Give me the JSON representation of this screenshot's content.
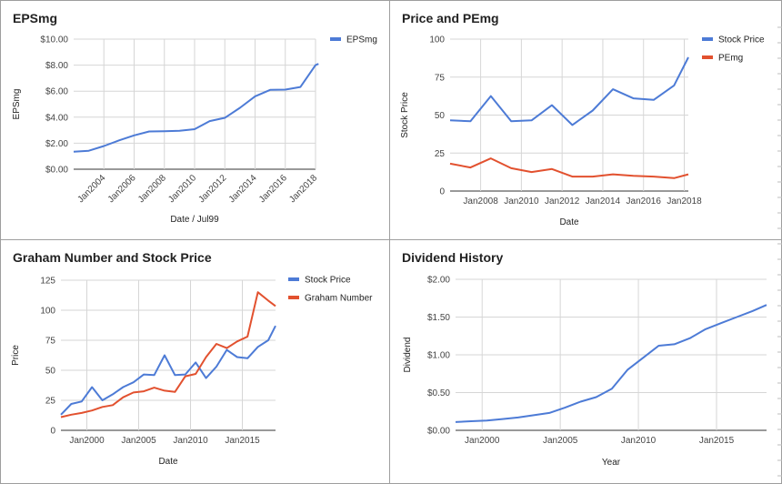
{
  "colors": {
    "blue": "#4d7bd6",
    "red": "#e2512f",
    "grid": "#d6d6d6"
  },
  "chart_data": [
    {
      "id": "eps",
      "type": "line",
      "title": "EPSmg",
      "xlabel": "Date / Jul99",
      "ylabel": "EPSmg",
      "x_ticks": [
        "Jan2004",
        "Jan2006",
        "Jan2008",
        "Jan2010",
        "Jan2012",
        "Jan2014",
        "Jan2016",
        "Jan2018"
      ],
      "x_tick_values": [
        2004,
        2006,
        2008,
        2010,
        2012,
        2014,
        2016,
        2018
      ],
      "xlim": [
        2002,
        2018
      ],
      "y_ticks": [
        "$0.00",
        "$2.00",
        "$4.00",
        "$6.00",
        "$8.00",
        "$10.00"
      ],
      "y_tick_values": [
        0,
        2,
        4,
        6,
        8,
        10
      ],
      "ylim": [
        0,
        10
      ],
      "grid": true,
      "legend": "right",
      "series": [
        {
          "name": "EPSmg",
          "color": "#4d7bd6",
          "x": [
            2002,
            2003,
            2004,
            2005,
            2006,
            2007,
            2008,
            2009,
            2010,
            2011,
            2012,
            2013,
            2014,
            2015,
            2016,
            2017,
            2018,
            2018.2
          ],
          "y": [
            1.35,
            1.42,
            1.78,
            2.22,
            2.6,
            2.9,
            2.92,
            2.95,
            3.08,
            3.7,
            3.95,
            4.72,
            5.6,
            6.1,
            6.12,
            6.32,
            8.0,
            8.1
          ]
        }
      ]
    },
    {
      "id": "pe",
      "type": "line",
      "title": "Price and PEmg",
      "xlabel": "Date",
      "ylabel": "Stock Price",
      "x_ticks": [
        "Jan2008",
        "Jan2010",
        "Jan2012",
        "Jan2014",
        "Jan2016",
        "Jan2018"
      ],
      "x_tick_values": [
        2008,
        2010,
        2012,
        2014,
        2016,
        2018
      ],
      "xlim": [
        2006.5,
        2018.2
      ],
      "y_ticks": [
        "0",
        "25",
        "50",
        "75",
        "100"
      ],
      "y_tick_values": [
        0,
        25,
        50,
        75,
        100
      ],
      "ylim": [
        0,
        100
      ],
      "grid": true,
      "legend": "right",
      "series": [
        {
          "name": "Stock Price",
          "color": "#4d7bd6",
          "x": [
            2006.5,
            2007.5,
            2008.5,
            2009.5,
            2010.5,
            2011.5,
            2012.5,
            2013.5,
            2014.5,
            2015.5,
            2016.5,
            2017.5,
            2018.2
          ],
          "y": [
            46.5,
            46,
            62.5,
            46,
            46.5,
            56.5,
            43.5,
            53,
            67,
            61,
            60,
            69.5,
            88
          ]
        },
        {
          "name": "PEmg",
          "color": "#e2512f",
          "x": [
            2006.5,
            2007.5,
            2008.5,
            2009.5,
            2010.5,
            2011.5,
            2012.5,
            2013.5,
            2014.5,
            2015.5,
            2016.5,
            2017.5,
            2018.2
          ],
          "y": [
            18,
            15.5,
            21.5,
            15,
            12.5,
            14.5,
            9.5,
            9.5,
            11,
            10,
            9.5,
            8.5,
            11
          ]
        }
      ]
    },
    {
      "id": "graham",
      "type": "line",
      "title": "Graham Number and Stock Price",
      "xlabel": "Date",
      "ylabel": "Price",
      "x_ticks": [
        "Jan2000",
        "Jan2005",
        "Jan2010",
        "Jan2015"
      ],
      "x_tick_values": [
        2000,
        2005,
        2010,
        2015
      ],
      "xlim": [
        1997.5,
        2018.2
      ],
      "y_ticks": [
        "0",
        "25",
        "50",
        "75",
        "100",
        "125"
      ],
      "y_tick_values": [
        0,
        25,
        50,
        75,
        100,
        125
      ],
      "ylim": [
        0,
        125
      ],
      "grid": true,
      "legend": "right",
      "series": [
        {
          "name": "Stock Price",
          "color": "#4d7bd6",
          "x": [
            1997.5,
            1998.5,
            1999.5,
            2000.5,
            2001.5,
            2002.5,
            2003.5,
            2004.5,
            2005.5,
            2006.5,
            2007.5,
            2008.5,
            2009.5,
            2010.5,
            2011.5,
            2012.5,
            2013.5,
            2014.5,
            2015.5,
            2016.5,
            2017.5,
            2018.2
          ],
          "y": [
            13,
            22,
            24,
            36,
            25,
            30,
            36,
            40,
            46.5,
            46,
            62.5,
            46,
            46.5,
            56.5,
            43.5,
            53,
            67,
            61,
            60,
            69.5,
            75,
            87
          ]
        },
        {
          "name": "Graham Number",
          "color": "#e2512f",
          "x": [
            1997.5,
            1998.5,
            1999.5,
            2000.5,
            2001.5,
            2002.5,
            2003.5,
            2004.5,
            2005.5,
            2006.5,
            2007.5,
            2008.5,
            2009.5,
            2010.5,
            2011.5,
            2012.5,
            2013.5,
            2014.5,
            2015.5,
            2016.5,
            2017.5,
            2018.2
          ],
          "y": [
            11,
            13,
            14.5,
            16.5,
            19.5,
            21,
            27.5,
            31.5,
            32.5,
            35.5,
            33,
            32,
            45,
            47,
            61,
            72,
            68.5,
            74,
            78,
            115,
            108,
            103.5
          ]
        }
      ]
    },
    {
      "id": "dividend",
      "type": "line",
      "title": "Dividend History",
      "xlabel": "Year",
      "ylabel": "Dividend",
      "x_ticks": [
        "Jan2000",
        "Jan2005",
        "Jan2010",
        "Jan2015"
      ],
      "x_tick_values": [
        2000,
        2005,
        2010,
        2015
      ],
      "xlim": [
        1998.3,
        2018.2
      ],
      "y_ticks": [
        "$0.00",
        "$0.50",
        "$1.00",
        "$1.50",
        "$2.00"
      ],
      "y_tick_values": [
        0,
        0.5,
        1,
        1.5,
        2
      ],
      "ylim": [
        0,
        2
      ],
      "grid": true,
      "legend": "none",
      "series": [
        {
          "name": "",
          "color": "#4d7bd6",
          "x": [
            1998.3,
            1999.3,
            2000.3,
            2001.3,
            2002.3,
            2003.3,
            2004.3,
            2005.3,
            2006.3,
            2007.3,
            2008.3,
            2009.3,
            2010.3,
            2011.3,
            2012.3,
            2013.3,
            2014.3,
            2015.3,
            2016.3,
            2017.3,
            2018.2
          ],
          "y": [
            0.11,
            0.12,
            0.13,
            0.15,
            0.17,
            0.2,
            0.23,
            0.3,
            0.38,
            0.44,
            0.55,
            0.8,
            0.96,
            1.12,
            1.14,
            1.22,
            1.34,
            1.42,
            1.5,
            1.58,
            1.66
          ]
        }
      ]
    }
  ]
}
